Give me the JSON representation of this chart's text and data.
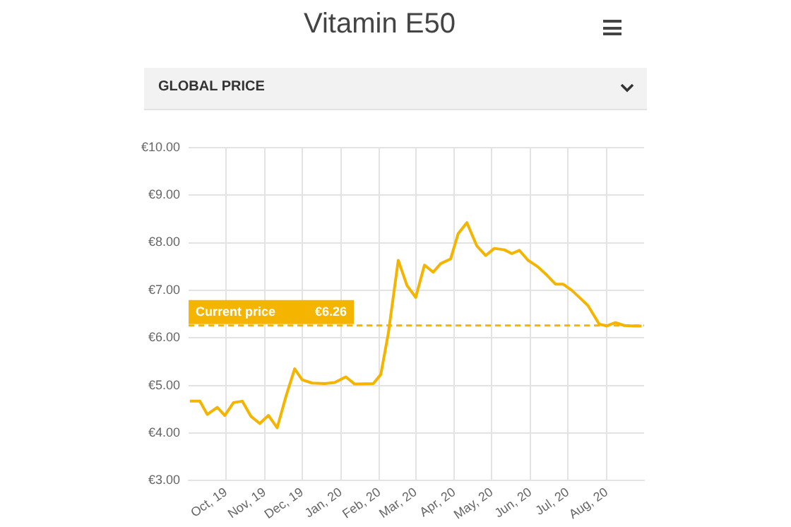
{
  "chart_data": {
    "type": "line",
    "title": "Vitamin E50",
    "subtitle": "GLOBAL PRICE",
    "x": [
      "2019-09-02",
      "2019-09-10",
      "2019-09-16",
      "2019-09-24",
      "2019-09-30",
      "2019-10-07",
      "2019-10-14",
      "2019-10-21",
      "2019-10-28",
      "2019-11-04",
      "2019-11-11",
      "2019-11-18",
      "2019-11-25",
      "2019-12-01",
      "2019-12-09",
      "2019-12-19",
      "2019-12-27",
      "2020-01-05",
      "2020-01-12",
      "2020-01-27",
      "2020-02-02",
      "2020-02-08",
      "2020-02-16",
      "2020-02-23",
      "2020-03-01",
      "2020-03-08",
      "2020-03-15",
      "2020-03-21",
      "2020-03-29",
      "2020-04-04",
      "2020-04-11",
      "2020-04-19",
      "2020-04-26",
      "2020-05-03",
      "2020-05-11",
      "2020-05-17",
      "2020-05-23",
      "2020-05-30",
      "2020-06-07",
      "2020-06-14",
      "2020-06-21",
      "2020-06-27",
      "2020-07-04",
      "2020-07-11",
      "2020-07-17",
      "2020-07-26",
      "2020-08-01",
      "2020-08-08",
      "2020-08-15",
      "2020-08-23",
      "2020-08-29"
    ],
    "series": [
      {
        "color": "#f5b400",
        "values": [
          4.67,
          4.67,
          4.39,
          4.54,
          4.37,
          4.64,
          4.67,
          4.35,
          4.2,
          4.37,
          4.11,
          4.77,
          5.35,
          5.12,
          5.05,
          5.04,
          5.06,
          5.18,
          5.03,
          5.04,
          5.23,
          6.09,
          7.63,
          7.1,
          6.85,
          7.53,
          7.38,
          7.56,
          7.66,
          8.19,
          8.42,
          7.93,
          7.73,
          7.88,
          7.85,
          7.77,
          7.84,
          7.63,
          7.49,
          7.32,
          7.13,
          7.13,
          7.0,
          6.83,
          6.68,
          6.29,
          6.25,
          6.32,
          6.26,
          6.25,
          6.25
        ]
      }
    ],
    "xlim": [
      "2019-09-01",
      "2020-08-31"
    ],
    "xticks": [
      {
        "value": "2019-10-01",
        "label": "Oct, 19"
      },
      {
        "value": "2019-11-01",
        "label": "Nov, 19"
      },
      {
        "value": "2019-12-01",
        "label": "Dec, 19"
      },
      {
        "value": "2020-01-01",
        "label": "Jan, 20"
      },
      {
        "value": "2020-02-01",
        "label": "Feb, 20"
      },
      {
        "value": "2020-03-01",
        "label": "Mar, 20"
      },
      {
        "value": "2020-04-01",
        "label": "Apr, 20"
      },
      {
        "value": "2020-05-01",
        "label": "May, 20"
      },
      {
        "value": "2020-06-01",
        "label": "Jun, 20"
      },
      {
        "value": "2020-07-01",
        "label": "Jul, 20"
      },
      {
        "value": "2020-08-01",
        "label": "Aug, 20"
      }
    ],
    "ylim": [
      3,
      10
    ],
    "yticks": [
      {
        "value": 3,
        "label": "€3.00"
      },
      {
        "value": 4,
        "label": "€4.00"
      },
      {
        "value": 5,
        "label": "€5.00"
      },
      {
        "value": 6,
        "label": "€6.00"
      },
      {
        "value": 7,
        "label": "€7.00"
      },
      {
        "value": 8,
        "label": "€8.00"
      },
      {
        "value": 9,
        "label": "€9.00"
      },
      {
        "value": 10,
        "label": "€10.00"
      }
    ],
    "ref_lines": [
      {
        "axis": "y",
        "value": 6.26,
        "label": "Current price",
        "color": "#f5b400",
        "line_style": "dashed"
      }
    ],
    "annotations": [
      {
        "text": "€6.26",
        "y": 6.26
      }
    ],
    "grid": true,
    "marker": "none",
    "line_style": "solid"
  }
}
